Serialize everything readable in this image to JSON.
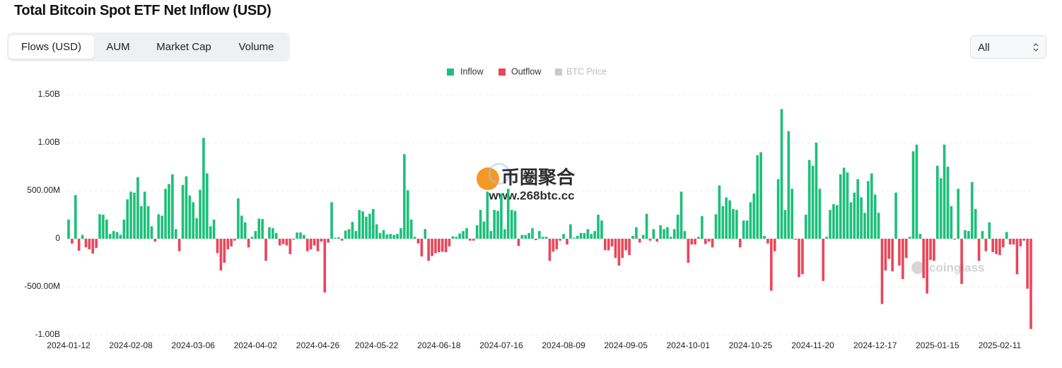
{
  "chart_data": {
    "type": "bar",
    "title": "Total Bitcoin Spot ETF Net Inflow (USD)",
    "tabs": [
      "Flows (USD)",
      "AUM",
      "Market Cap",
      "Volume"
    ],
    "active_tab": 0,
    "range_select": "All",
    "legend": [
      {
        "name": "Inflow",
        "color": "#1dbf7a",
        "active": true
      },
      {
        "name": "Outflow",
        "color": "#e8475a",
        "active": true
      },
      {
        "name": "BTC Price",
        "color": "#c9c9c9",
        "active": false
      }
    ],
    "watermark": {
      "site_name": "币圈聚合",
      "site_url": "www.268btc.cc",
      "brand": "coinglass"
    },
    "ylim": [
      -1000000000.0,
      1500000000.0
    ],
    "yticks": [
      {
        "value": 1500000000.0,
        "label": "1.50B"
      },
      {
        "value": 1000000000.0,
        "label": "1.00B"
      },
      {
        "value": 500000000.0,
        "label": "500.00M"
      },
      0,
      {
        "value": -500000000.0,
        "label": "-500.00M"
      },
      {
        "value": -1000000000.0,
        "label": "-1.00B"
      }
    ],
    "grid": true,
    "categories": [
      "2024-01-12",
      null,
      null,
      null,
      null,
      null,
      null,
      null,
      null,
      null,
      null,
      null,
      null,
      null,
      null,
      null,
      null,
      null,
      "2024-02-08",
      null,
      null,
      null,
      null,
      null,
      null,
      null,
      null,
      null,
      null,
      null,
      null,
      null,
      null,
      null,
      null,
      null,
      "2024-03-06",
      null,
      null,
      null,
      null,
      null,
      null,
      null,
      null,
      null,
      null,
      null,
      null,
      null,
      null,
      null,
      null,
      null,
      "2024-04-02",
      null,
      null,
      null,
      null,
      null,
      null,
      null,
      null,
      null,
      null,
      null,
      null,
      null,
      null,
      null,
      null,
      null,
      "2024-04-26",
      null,
      null,
      null,
      null,
      null,
      null,
      null,
      null,
      null,
      null,
      null,
      null,
      null,
      null,
      null,
      null,
      "2024-05-22",
      null,
      null,
      null,
      null,
      null,
      null,
      null,
      null,
      null,
      null,
      null,
      null,
      null,
      null,
      null,
      null,
      null,
      "2024-06-18",
      null,
      null,
      null,
      null,
      null,
      null,
      null,
      null,
      null,
      null,
      null,
      null,
      null,
      null,
      null,
      null,
      null,
      "2024-07-16",
      null,
      null,
      null,
      null,
      null,
      null,
      null,
      null,
      null,
      null,
      null,
      null,
      null,
      null,
      null,
      null,
      null,
      "2024-08-09",
      null,
      null,
      null,
      null,
      null,
      null,
      null,
      null,
      null,
      null,
      null,
      null,
      null,
      null,
      null,
      null,
      null,
      "2024-09-05",
      null,
      null,
      null,
      null,
      null,
      null,
      null,
      null,
      null,
      null,
      null,
      null,
      null,
      null,
      null,
      null,
      null,
      "2024-10-01",
      null,
      null,
      null,
      null,
      null,
      null,
      null,
      null,
      null,
      null,
      null,
      null,
      null,
      null,
      null,
      null,
      null,
      "2024-10-25",
      null,
      null,
      null,
      null,
      null,
      null,
      null,
      null,
      null,
      null,
      null,
      null,
      null,
      null,
      null,
      null,
      null,
      "2024-11-20",
      null,
      null,
      null,
      null,
      null,
      null,
      null,
      null,
      null,
      null,
      null,
      null,
      null,
      null,
      null,
      null,
      null,
      "2024-12-17",
      null,
      null,
      null,
      null,
      null,
      null,
      null,
      null,
      null,
      null,
      null,
      null,
      null,
      null,
      null,
      null,
      null,
      "2025-01-15",
      null,
      null,
      null,
      null,
      null,
      null,
      null,
      null,
      null,
      null,
      null,
      null,
      null,
      null,
      null,
      null,
      null,
      "2025-02-11",
      null,
      null,
      null,
      null,
      null,
      null,
      null,
      null,
      null
    ],
    "values": [
      200000000.0,
      -50000000.0,
      455000000.0,
      -125000000.0,
      40000000.0,
      -90000000.0,
      -110000000.0,
      -155000000.0,
      -95000000.0,
      255000000.0,
      250000000.0,
      200000000.0,
      50000000.0,
      80000000.0,
      70000000.0,
      40000000.0,
      200000000.0,
      410000000.0,
      490000000.0,
      480000000.0,
      640000000.0,
      340000000.0,
      490000000.0,
      340000000.0,
      130000000.0,
      -30000000.0,
      255000000.0,
      240000000.0,
      520000000.0,
      570000000.0,
      670000000.0,
      100000000.0,
      -130000000.0,
      560000000.0,
      650000000.0,
      450000000.0,
      380000000.0,
      215000000.0,
      510000000.0,
      1050000000.0,
      680000000.0,
      130000000.0,
      200000000.0,
      -150000000.0,
      -330000000.0,
      -250000000.0,
      -110000000.0,
      -80000000.0,
      -20000000.0,
      420000000.0,
      240000000.0,
      170000000.0,
      -90000000.0,
      20000000.0,
      80000000.0,
      210000000.0,
      205000000.0,
      -230000000.0,
      120000000.0,
      110000000.0,
      60000000.0,
      -70000000.0,
      -55000000.0,
      -70000000.0,
      -160000000.0,
      -10000000.0,
      65000000.0,
      65000000.0,
      40000000.0,
      -130000000.0,
      -110000000.0,
      -70000000.0,
      -130000000.0,
      -30000000.0,
      -560000000.0,
      -40000000.0,
      380000000.0,
      10000000.0,
      15000000.0,
      -20000000.0,
      85000000.0,
      100000000.0,
      175000000.0,
      80000000.0,
      300000000.0,
      285000000.0,
      230000000.0,
      260000000.0,
      310000000.0,
      150000000.0,
      60000000.0,
      90000000.0,
      45000000.0,
      50000000.0,
      40000000.0,
      50000000.0,
      110000000.0,
      880000000.0,
      505000000.0,
      200000000.0,
      20000000.0,
      -50000000.0,
      -185000000.0,
      100000000.0,
      -230000000.0,
      -180000000.0,
      -150000000.0,
      -140000000.0,
      -135000000.0,
      -140000000.0,
      -80000000.0,
      25000000.0,
      20000000.0,
      55000000.0,
      80000000.0,
      110000000.0,
      -20000000.0,
      -20000000.0,
      140000000.0,
      300000000.0,
      180000000.0,
      490000000.0,
      80000000.0,
      300000000.0,
      290000000.0,
      470000000.0,
      100000000.0,
      520000000.0,
      300000000.0,
      290000000.0,
      -75000000.0,
      40000000.0,
      40000000.0,
      60000000.0,
      110000000.0,
      -15000000.0,
      80000000.0,
      20000000.0,
      20000000.0,
      -230000000.0,
      -135000000.0,
      -110000000.0,
      -20000000.0,
      50000000.0,
      -60000000.0,
      150000000.0,
      10000000.0,
      30000000.0,
      60000000.0,
      60000000.0,
      100000000.0,
      50000000.0,
      80000000.0,
      250000000.0,
      190000000.0,
      -120000000.0,
      -120000000.0,
      -80000000.0,
      -200000000.0,
      -280000000.0,
      -200000000.0,
      -120000000.0,
      -170000000.0,
      30000000.0,
      120000000.0,
      -40000000.0,
      40000000.0,
      260000000.0,
      -20000000.0,
      100000000.0,
      -30000000.0,
      140000000.0,
      100000000.0,
      120000000.0,
      20000000.0,
      100000000.0,
      250000000.0,
      490000000.0,
      80000000.0,
      -250000000.0,
      -60000000.0,
      -60000000.0,
      20000000.0,
      235000000.0,
      -55000000.0,
      -30000000.0,
      -90000000.0,
      255000000.0,
      555000000.0,
      340000000.0,
      430000000.0,
      400000000.0,
      310000000.0,
      300000000.0,
      -90000000.0,
      190000000.0,
      190000000.0,
      380000000.0,
      470000000.0,
      870000000.0,
      900000000.0,
      30000000.0,
      -50000000.0,
      -540000000.0,
      -130000000.0,
      620000000.0,
      1350000000.0,
      300000000.0,
      1120000000.0,
      520000000.0,
      -10000000.0,
      -400000000.0,
      -370000000.0,
      250000000.0,
      820000000.0,
      760000000.0,
      1000000000.0,
      520000000.0,
      -440000000.0,
      20000000.0,
      300000000.0,
      360000000.0,
      350000000.0,
      670000000.0,
      740000000.0,
      690000000.0,
      380000000.0,
      480000000.0,
      620000000.0,
      430000000.0,
      270000000.0,
      600000000.0,
      680000000.0,
      460000000.0,
      270000000.0,
      -680000000.0,
      -330000000.0,
      -210000000.0,
      -340000000.0,
      480000000.0,
      -280000000.0,
      -420000000.0,
      -200000000.0,
      20000000.0,
      910000000.0,
      980000000.0,
      50000000.0,
      -410000000.0,
      -570000000.0,
      -220000000.0,
      -230000000.0,
      760000000.0,
      630000000.0,
      980000000.0,
      750000000.0,
      340000000.0,
      -10000000.0,
      520000000.0,
      -470000000.0,
      90000000.0,
      80000000.0,
      590000000.0,
      310000000.0,
      -230000000.0,
      80000000.0,
      -130000000.0,
      170000000.0,
      -140000000.0,
      -160000000.0,
      -170000000.0,
      -90000000.0,
      70000000.0,
      -60000000.0,
      -60000000.0,
      -370000000.0,
      -80000000.0,
      -20000000.0,
      -520000000.0,
      -940000000.0
    ]
  }
}
